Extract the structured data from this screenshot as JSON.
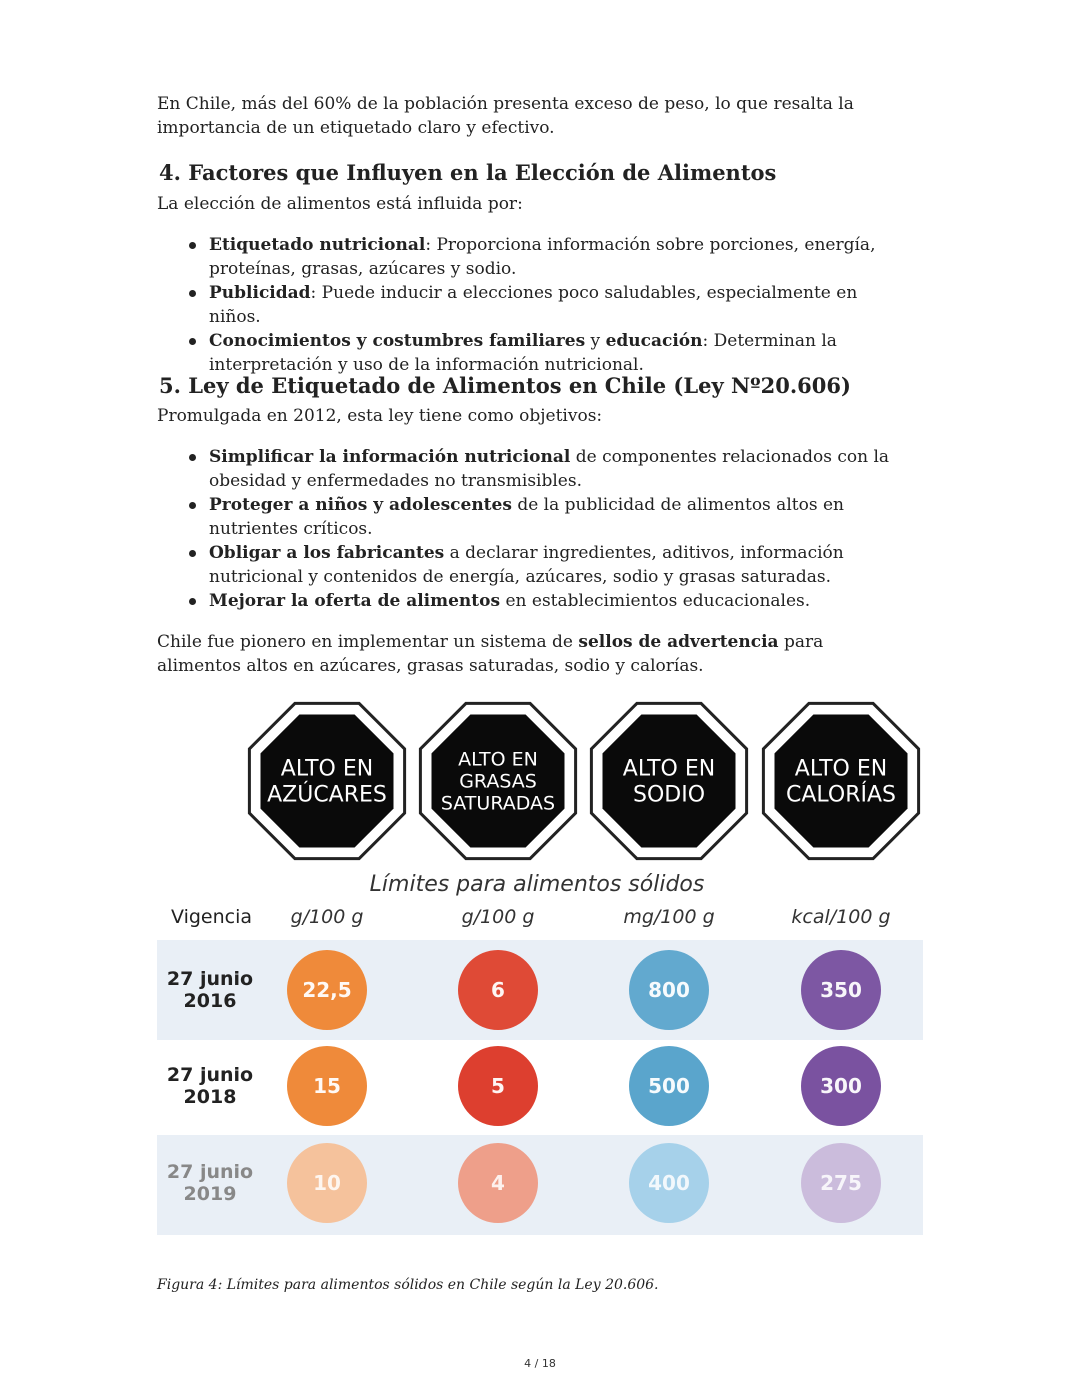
{
  "intro": "En Chile, más del 60% de la población presenta exceso de peso, lo que resalta la importancia de un etiquetado claro y efectivo.",
  "section4": {
    "title": "4. Factores que Influyen en la Elección de Alimentos",
    "lead": "La elección de alimentos está influida por:",
    "items": [
      {
        "bold": "Etiquetado nutricional",
        "rest": ": Proporciona información sobre porciones, energía, proteínas, grasas, azúcares y sodio."
      },
      {
        "bold": "Publicidad",
        "rest": ": Puede inducir a elecciones poco saludables, especialmente en niños."
      },
      {
        "bold": "Conocimientos y costumbres familiares",
        "mid": " y ",
        "bold2": "educación",
        "rest": ": Determinan la interpretación y uso de la información nutricional."
      }
    ]
  },
  "section5": {
    "title": "5. Ley de Etiquetado de Alimentos en Chile (Ley Nº20.606)",
    "lead": "Promulgada en 2012, esta ley tiene como objetivos:",
    "items": [
      {
        "bold": "Simplificar la información nutricional",
        "rest": " de componentes relacionados con la obesidad y enfermedades no transmisibles."
      },
      {
        "bold": "Proteger a niños y adolescentes",
        "rest": " de la publicidad de alimentos altos en nutrientes críticos."
      },
      {
        "bold": "Obligar a los fabricantes",
        "rest": " a declarar ingredientes, aditivos, información nutricional y contenidos de energía, azúcares, sodio y grasas saturadas."
      },
      {
        "bold": "Mejorar la oferta de alimentos",
        "rest": " en establecimientos educacionales."
      }
    ],
    "closing_pre": "Chile fue pionero en implementar un sistema de ",
    "closing_bold": "sellos de advertencia",
    "closing_post": " para alimentos altos en azúcares, grasas saturadas, sodio y calorías."
  },
  "figure": {
    "seals": [
      [
        "ALTO EN",
        "AZÚCARES"
      ],
      [
        "ALTO EN",
        "GRASAS",
        "SATURADAS"
      ],
      [
        "ALTO EN",
        "SODIO"
      ],
      [
        "ALTO EN",
        "CALORÍAS"
      ]
    ],
    "title": "Límites para alimentos sólidos",
    "header": "Vigencia",
    "units": [
      "g/100 g",
      "g/100 g",
      "mg/100 g",
      "kcal/100 g"
    ],
    "rows": [
      {
        "date": [
          "27 junio",
          "2016"
        ],
        "values": [
          "22,5",
          "6",
          "800",
          "350"
        ]
      },
      {
        "date": [
          "27 junio",
          "2018"
        ],
        "values": [
          "15",
          "5",
          "500",
          "300"
        ]
      },
      {
        "date": [
          "27 junio",
          "2019"
        ],
        "values": [
          "10",
          "4",
          "400",
          "275"
        ]
      }
    ],
    "colors": [
      [
        "#ef8a3a",
        "#df4a36",
        "#62a9cf",
        "#7d57a3"
      ],
      [
        "#ef8a3a",
        "#dd3f2f",
        "#5aa5cc",
        "#7a52a0"
      ],
      [
        "#f5c29c",
        "#ee9f8a",
        "#a6d1ea",
        "#cbbcdc"
      ]
    ],
    "caption": "Figura 4: Límites para alimentos sólidos en Chile según la Ley 20.606."
  },
  "page": "4 / 18"
}
